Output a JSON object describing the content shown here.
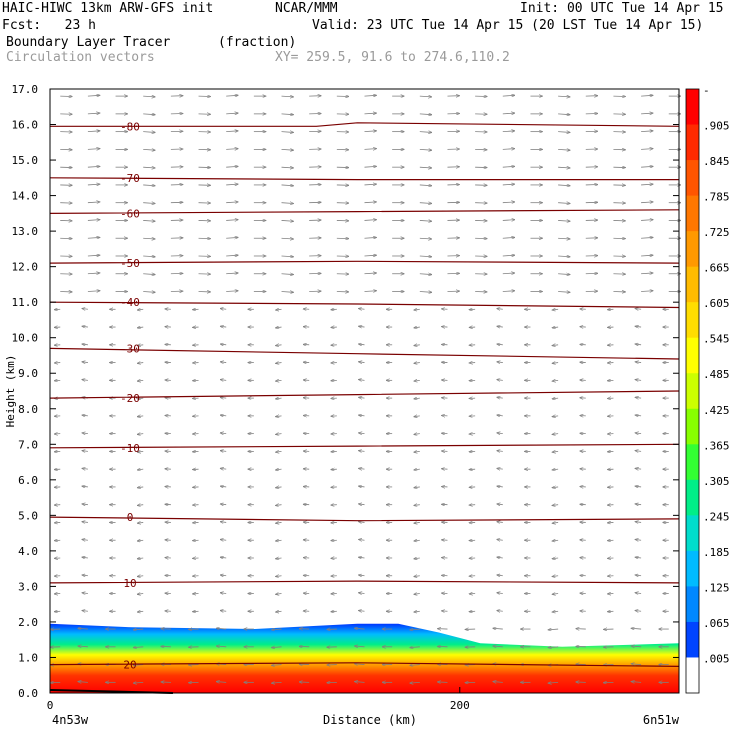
{
  "header": {
    "model": "HAIC-HIWC 13km ARW-GFS init",
    "center": "NCAR/MMM",
    "init": "Init: 00 UTC Tue 14 Apr 15",
    "fcst": "Fcst:   23 h",
    "valid": "Valid: 23 UTC Tue 14 Apr 15 (20 LST Tue 14 Apr 15)",
    "field": "Boundary Layer Tracer",
    "units": "(fraction)",
    "vectors": "Circulation vectors",
    "xy": "XY= 259.5, 91.6 to 274.6,110.2"
  },
  "chart_data": {
    "type": "heatmap",
    "xlabel": "Distance (km)",
    "ylabel": "Height (km)",
    "xlim": [
      0,
      307
    ],
    "ylim": [
      0,
      17
    ],
    "x_ticks": [
      {
        "value": 0,
        "label": "0"
      },
      {
        "value": 200,
        "label": "200"
      }
    ],
    "x_end_labels": {
      "left": "4n53w",
      "right": "6n51w"
    },
    "y_ticks": [
      "0.0",
      "1.0",
      "2.0",
      "3.0",
      "4.0",
      "5.0",
      "6.0",
      "7.0",
      "8.0",
      "9.0",
      "10.0",
      "11.0",
      "12.0",
      "13.0",
      "14.0",
      "15.0",
      "16.0",
      "17.0"
    ],
    "colorbar": {
      "labels": [
        "-",
        ".905",
        ".845",
        ".785",
        ".725",
        ".665",
        ".605",
        ".545",
        ".485",
        ".425",
        ".365",
        ".305",
        ".245",
        ".185",
        ".125",
        ".065",
        ".005"
      ],
      "colors": [
        "#ff0000",
        "#ff2a00",
        "#ff5500",
        "#ff7700",
        "#ff9900",
        "#ffbb00",
        "#ffdd00",
        "#ffff00",
        "#ccff00",
        "#88ff00",
        "#33ff33",
        "#00ee88",
        "#00ddcc",
        "#00bbff",
        "#0088ff",
        "#0044ff",
        "#ffffff"
      ]
    },
    "tracer_top_km": [
      [
        0,
        1.95
      ],
      [
        40,
        1.85
      ],
      [
        100,
        1.8
      ],
      [
        150,
        1.95
      ],
      [
        170,
        1.95
      ],
      [
        190,
        1.7
      ],
      [
        210,
        1.4
      ],
      [
        250,
        1.3
      ],
      [
        307,
        1.4
      ]
    ],
    "temperature_contours_C": [
      {
        "label": "20",
        "value": 20,
        "pts": [
          [
            0,
            0.8
          ],
          [
            150,
            0.85
          ],
          [
            307,
            0.75
          ]
        ]
      },
      {
        "label": "10",
        "value": 10,
        "pts": [
          [
            0,
            3.1
          ],
          [
            150,
            3.15
          ],
          [
            307,
            3.1
          ]
        ]
      },
      {
        "label": "0",
        "value": 0,
        "pts": [
          [
            0,
            4.95
          ],
          [
            150,
            4.85
          ],
          [
            307,
            4.9
          ]
        ]
      },
      {
        "label": "-10",
        "value": -10,
        "pts": [
          [
            0,
            6.9
          ],
          [
            150,
            6.95
          ],
          [
            307,
            7.0
          ]
        ]
      },
      {
        "label": "-20",
        "value": -20,
        "pts": [
          [
            0,
            8.3
          ],
          [
            150,
            8.4
          ],
          [
            307,
            8.5
          ]
        ]
      },
      {
        "label": "-30",
        "value": -30,
        "pts": [
          [
            0,
            9.7
          ],
          [
            150,
            9.55
          ],
          [
            307,
            9.4
          ]
        ]
      },
      {
        "label": "-40",
        "value": -40,
        "pts": [
          [
            0,
            11.0
          ],
          [
            150,
            10.95
          ],
          [
            307,
            10.85
          ]
        ]
      },
      {
        "label": "-50",
        "value": -50,
        "pts": [
          [
            0,
            12.1
          ],
          [
            150,
            12.15
          ],
          [
            307,
            12.1
          ]
        ]
      },
      {
        "label": "-60",
        "value": -60,
        "pts": [
          [
            0,
            13.5
          ],
          [
            150,
            13.55
          ],
          [
            307,
            13.6
          ]
        ]
      },
      {
        "label": "-70",
        "value": -70,
        "pts": [
          [
            0,
            14.5
          ],
          [
            150,
            14.45
          ],
          [
            307,
            14.45
          ]
        ]
      },
      {
        "label": "-80",
        "value": -80,
        "pts": [
          [
            0,
            15.95
          ],
          [
            130,
            15.95
          ],
          [
            150,
            16.05
          ],
          [
            307,
            15.95
          ]
        ]
      }
    ],
    "vector_note": "Circulation vectors: easterly (leftward) flow below ~11 km, westerly (rightward) flow above ~11 km"
  }
}
